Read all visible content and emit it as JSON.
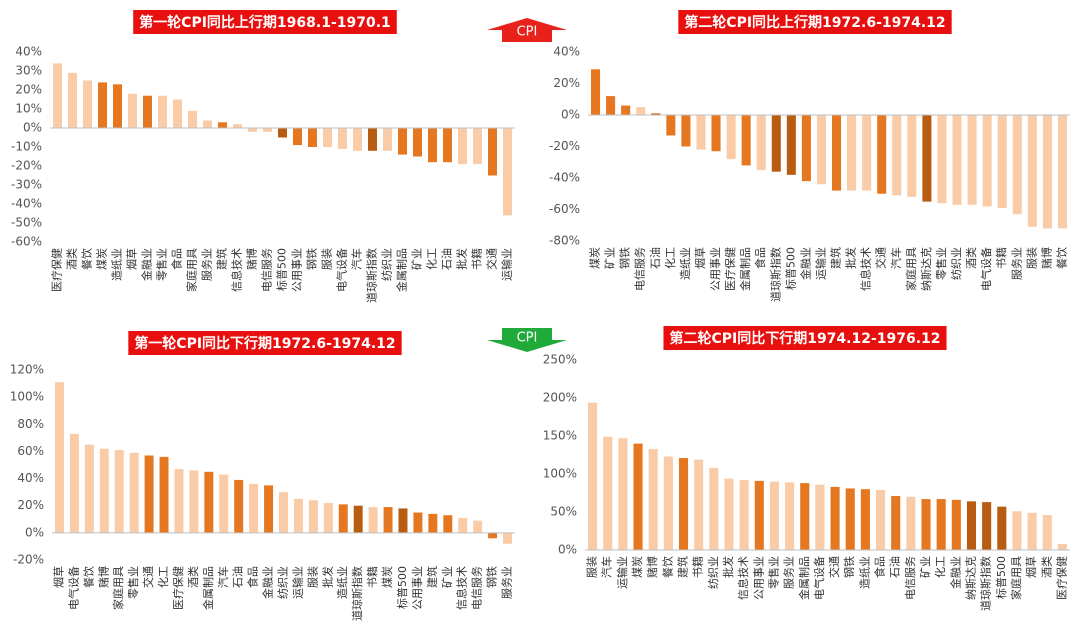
{
  "chart_data": [
    {
      "type": "bar",
      "title": "第一轮CPI同比上行期1968.1-1970.1",
      "categories": [
        "医疗保健",
        "酒类",
        "餐饮",
        "煤炭",
        "造纸业",
        "烟草",
        "金融业",
        "零售业",
        "食品",
        "家庭用具",
        "服务业",
        "建筑",
        "信息技术",
        "赌博",
        "电信服务",
        "标普500",
        "公用事业",
        "钢铁",
        "服装",
        "电气设备",
        "汽车",
        "道琼斯指数",
        "纺织业",
        "金属制品",
        "矿业",
        "化工",
        "石油",
        "批发",
        "书籍",
        "交通",
        "运输业"
      ],
      "values": [
        34,
        29,
        25,
        24,
        23,
        18,
        17,
        17,
        15,
        9,
        4,
        3,
        2,
        -2,
        -2,
        -5,
        -9,
        -10,
        -10,
        -11,
        -12,
        -12,
        -12,
        -14,
        -15,
        -18,
        -18,
        -19,
        -19,
        -25,
        -46
      ],
      "colors": [
        "#f9cba6",
        "#f9cba6",
        "#f9cba6",
        "#e47720",
        "#e47720",
        "#f9cba6",
        "#e47720",
        "#f9cba6",
        "#f9cba6",
        "#f9cba6",
        "#f9cba6",
        "#e47720",
        "#f9cba6",
        "#f9cba6",
        "#f9cba6",
        "#b85c12",
        "#e47720",
        "#e47720",
        "#f9cba6",
        "#f9cba6",
        "#f9cba6",
        "#b85c12",
        "#f9cba6",
        "#e47720",
        "#e47720",
        "#e47720",
        "#e47720",
        "#f9cba6",
        "#f9cba6",
        "#e47720",
        "#f9cba6"
      ],
      "ylim": [
        -60,
        40
      ],
      "yticks": [
        {
          "value": -60,
          "label": "-60%"
        },
        {
          "value": -50,
          "label": "-50%"
        },
        {
          "value": -40,
          "label": "-40%"
        },
        {
          "value": -30,
          "label": "-30%"
        },
        {
          "value": -20,
          "label": "-20%"
        },
        {
          "value": -10,
          "label": "-10%"
        },
        {
          "value": 0,
          "label": "0%"
        },
        {
          "value": 10,
          "label": "10%"
        },
        {
          "value": 20,
          "label": "20%"
        },
        {
          "value": 30,
          "label": "30%"
        },
        {
          "value": 40,
          "label": "40%"
        }
      ]
    },
    {
      "type": "bar",
      "title": "第二轮CPI同比上行期1972.6-1974.12",
      "categories": [
        "煤炭",
        "矿业",
        "钢铁",
        "电信服务",
        "石油",
        "化工",
        "造纸业",
        "烟草",
        "公用事业",
        "医疗保健",
        "金属制品",
        "食品",
        "道琼斯指数",
        "标普500",
        "金融业",
        "运输业",
        "建筑",
        "批发",
        "信息技术",
        "交通",
        "汽车",
        "家庭用具",
        "纳斯达克",
        "零售业",
        "纺织业",
        "酒类",
        "电气设备",
        "书籍",
        "服务业",
        "服装",
        "赌博",
        "餐饮"
      ],
      "values": [
        29,
        12,
        6,
        5,
        1,
        -13,
        -20,
        -22,
        -23,
        -28,
        -32,
        -35,
        -36,
        -38,
        -42,
        -44,
        -48,
        -48,
        -48,
        -50,
        -51,
        -52,
        -55,
        -56,
        -57,
        -57,
        -58,
        -59,
        -63,
        -71,
        -72,
        -72
      ],
      "colors": [
        "#e47720",
        "#e47720",
        "#e47720",
        "#f9cba6",
        "#b85c12",
        "#e47720",
        "#e47720",
        "#f9cba6",
        "#e47720",
        "#f9cba6",
        "#e47720",
        "#f9cba6",
        "#b85c12",
        "#b85c12",
        "#e47720",
        "#f9cba6",
        "#e47720",
        "#f9cba6",
        "#f9cba6",
        "#e47720",
        "#f9cba6",
        "#f9cba6",
        "#b85c12",
        "#f9cba6",
        "#f9cba6",
        "#f9cba6",
        "#f9cba6",
        "#f9cba6",
        "#f9cba6",
        "#f9cba6",
        "#f9cba6",
        "#f9cba6"
      ],
      "ylim": [
        -80,
        40
      ],
      "yticks": [
        {
          "value": -80,
          "label": "-80%"
        },
        {
          "value": -60,
          "label": "-60%"
        },
        {
          "value": -40,
          "label": "-40%"
        },
        {
          "value": -20,
          "label": "-20%"
        },
        {
          "value": 0,
          "label": "0%"
        },
        {
          "value": 20,
          "label": "20%"
        },
        {
          "value": 40,
          "label": "40%"
        }
      ]
    },
    {
      "type": "bar",
      "title": "第一轮CPI同比下行期1972.6-1974.12",
      "categories": [
        "烟草",
        "电气设备",
        "餐饮",
        "赌博",
        "家庭用具",
        "零售业",
        "交通",
        "化工",
        "医疗保健",
        "酒类",
        "金属制品",
        "汽车",
        "石油",
        "食品",
        "金融业",
        "纺织业",
        "运输业",
        "服装",
        "批发",
        "造纸业",
        "道琼斯指数",
        "书籍",
        "煤炭",
        "标普500",
        "公用事业",
        "建筑",
        "矿业",
        "信息技术",
        "电信服务",
        "钢铁",
        "服务业"
      ],
      "values": [
        111,
        73,
        65,
        62,
        61,
        59,
        57,
        56,
        47,
        46,
        45,
        43,
        39,
        36,
        35,
        30,
        25,
        24,
        22,
        21,
        20,
        19,
        19,
        18,
        15,
        14,
        13,
        11,
        9,
        -4,
        -8
      ],
      "colors": [
        "#f9cba6",
        "#f9cba6",
        "#f9cba6",
        "#f9cba6",
        "#f9cba6",
        "#f9cba6",
        "#e47720",
        "#e47720",
        "#f9cba6",
        "#f9cba6",
        "#e47720",
        "#f9cba6",
        "#e47720",
        "#f9cba6",
        "#e47720",
        "#f9cba6",
        "#f9cba6",
        "#f9cba6",
        "#f9cba6",
        "#e47720",
        "#b85c12",
        "#f9cba6",
        "#e47720",
        "#b85c12",
        "#e47720",
        "#e47720",
        "#e47720",
        "#f9cba6",
        "#f9cba6",
        "#e47720",
        "#f9cba6"
      ],
      "ylim": [
        -20,
        120
      ],
      "yticks": [
        {
          "value": -20,
          "label": "-20%"
        },
        {
          "value": 0,
          "label": "0%"
        },
        {
          "value": 20,
          "label": "20%"
        },
        {
          "value": 40,
          "label": "40%"
        },
        {
          "value": 60,
          "label": "60%"
        },
        {
          "value": 80,
          "label": "80%"
        },
        {
          "value": 100,
          "label": "100%"
        },
        {
          "value": 120,
          "label": "120%"
        }
      ]
    },
    {
      "type": "bar",
      "title": "第二轮CPI同比下行期1974.12-1976.12",
      "categories": [
        "服装",
        "汽车",
        "运输业",
        "煤炭",
        "赌博",
        "餐饮",
        "建筑",
        "书籍",
        "纺织业",
        "批发",
        "信息技术",
        "公用事业",
        "零售业",
        "服务业",
        "金属制品",
        "电气设备",
        "交通",
        "钢铁",
        "造纸业",
        "食品",
        "石油",
        "电信服务",
        "矿业",
        "化工",
        "金融业",
        "纳斯达克",
        "道琼斯指数",
        "标普500",
        "家庭用具",
        "烟草",
        "酒类",
        "医疗保健"
      ],
      "values": [
        194,
        149,
        147,
        140,
        133,
        123,
        121,
        119,
        108,
        94,
        92,
        91,
        90,
        89,
        88,
        86,
        83,
        81,
        80,
        79,
        71,
        70,
        67,
        67,
        66,
        64,
        63,
        57,
        51,
        49,
        46,
        8
      ],
      "colors": [
        "#f9cba6",
        "#f9cba6",
        "#f9cba6",
        "#e47720",
        "#f9cba6",
        "#f9cba6",
        "#e47720",
        "#f9cba6",
        "#f9cba6",
        "#f9cba6",
        "#f9cba6",
        "#e47720",
        "#f9cba6",
        "#f9cba6",
        "#e47720",
        "#f9cba6",
        "#e47720",
        "#e47720",
        "#e47720",
        "#f9cba6",
        "#e47720",
        "#f9cba6",
        "#e47720",
        "#e47720",
        "#e47720",
        "#b85c12",
        "#b85c12",
        "#b85c12",
        "#f9cba6",
        "#f9cba6",
        "#f9cba6",
        "#f9cba6"
      ],
      "ylim": [
        0,
        250
      ],
      "yticks": [
        {
          "value": 0,
          "label": "0%"
        },
        {
          "value": 50,
          "label": "50%"
        },
        {
          "value": 100,
          "label": "100%"
        },
        {
          "value": 150,
          "label": "150%"
        },
        {
          "value": 200,
          "label": "200%"
        },
        {
          "value": 250,
          "label": "250%"
        }
      ]
    }
  ],
  "annotations": [
    "CPI",
    "CPI"
  ]
}
